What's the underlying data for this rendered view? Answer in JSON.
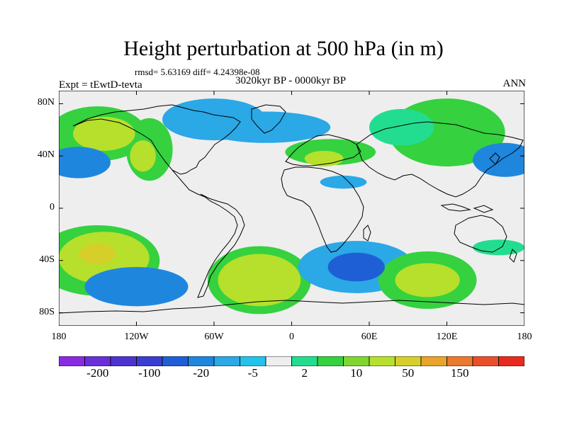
{
  "title": "Height perturbation at 500 hPa (in m)",
  "stats": "rmsd= 5.63169 diff= 4.24398e-08",
  "subtitle": "3020kyr BP - 0000kyr BP",
  "experiment": "Expt = tEwtD-tevta",
  "season": "ANN",
  "lat_ticks": [
    {
      "label": "80N",
      "lat": 80
    },
    {
      "label": "40N",
      "lat": 40
    },
    {
      "label": "0",
      "lat": 0
    },
    {
      "label": "40S",
      "lat": -40
    },
    {
      "label": "80S",
      "lat": -80
    }
  ],
  "lon_ticks": [
    {
      "label": "180",
      "lon": -180
    },
    {
      "label": "120W",
      "lon": -120
    },
    {
      "label": "60W",
      "lon": -60
    },
    {
      "label": "0",
      "lon": 0
    },
    {
      "label": "60E",
      "lon": 60
    },
    {
      "label": "120E",
      "lon": 120
    },
    {
      "label": "180",
      "lon": 180
    }
  ],
  "colorbar": {
    "colors": [
      "#8a2be2",
      "#6a2fd8",
      "#4e34cf",
      "#3a3ed1",
      "#1f5fd6",
      "#1f86dd",
      "#2ba8e6",
      "#22c3ea",
      "#eeeeee",
      "#22dd8f",
      "#35d13f",
      "#7fd62f",
      "#b6e02b",
      "#d6cf2a",
      "#e9a42c",
      "#ea7a2d",
      "#ea4f2b",
      "#e82a1f"
    ],
    "labels": [
      {
        "text": "-200",
        "after_box": 1
      },
      {
        "text": "-100",
        "after_box": 3
      },
      {
        "text": "-20",
        "after_box": 5
      },
      {
        "text": "-5",
        "after_box": 7
      },
      {
        "text": "2",
        "after_box": 9
      },
      {
        "text": "10",
        "after_box": 11
      },
      {
        "text": "50",
        "after_box": 13
      },
      {
        "text": "150",
        "after_box": 15
      }
    ]
  },
  "field_blobs": [
    {
      "lon": -145,
      "lat": 57,
      "rx": 24,
      "ry": 13,
      "color": "#b6e02b"
    },
    {
      "lon": -150,
      "lat": 57,
      "rx": 38,
      "ry": 21,
      "color": "#35d13f"
    },
    {
      "lon": -165,
      "lat": 35,
      "rx": 25,
      "ry": 12,
      "color": "#1f86dd"
    },
    {
      "lon": -115,
      "lat": 40,
      "rx": 10,
      "ry": 12,
      "color": "#b6e02b"
    },
    {
      "lon": -110,
      "lat": 45,
      "rx": 18,
      "ry": 24,
      "color": "#35d13f"
    },
    {
      "lon": -60,
      "lat": 68,
      "rx": 40,
      "ry": 16,
      "color": "#2ba8e6"
    },
    {
      "lon": -20,
      "lat": 62,
      "rx": 50,
      "ry": 12,
      "color": "#2ba8e6"
    },
    {
      "lon": 30,
      "lat": 43,
      "rx": 35,
      "ry": 10,
      "color": "#35d13f"
    },
    {
      "lon": 25,
      "lat": 38,
      "rx": 15,
      "ry": 6,
      "color": "#b6e02b"
    },
    {
      "lon": 120,
      "lat": 58,
      "rx": 45,
      "ry": 26,
      "color": "#35d13f"
    },
    {
      "lon": 85,
      "lat": 62,
      "rx": 25,
      "ry": 14,
      "color": "#22dd8f"
    },
    {
      "lon": 165,
      "lat": 37,
      "rx": 25,
      "ry": 13,
      "color": "#1f86dd"
    },
    {
      "lon": 40,
      "lat": 20,
      "rx": 18,
      "ry": 5,
      "color": "#2ba8e6"
    },
    {
      "lon": -145,
      "lat": -38,
      "rx": 35,
      "ry": 20,
      "color": "#b6e02b"
    },
    {
      "lon": -150,
      "lat": -35,
      "rx": 14,
      "ry": 8,
      "color": "#d6cf2a"
    },
    {
      "lon": -150,
      "lat": -40,
      "rx": 48,
      "ry": 27,
      "color": "#35d13f"
    },
    {
      "lon": -120,
      "lat": -60,
      "rx": 40,
      "ry": 15,
      "color": "#1f86dd"
    },
    {
      "lon": -25,
      "lat": -55,
      "rx": 32,
      "ry": 20,
      "color": "#b6e02b"
    },
    {
      "lon": -25,
      "lat": -55,
      "rx": 40,
      "ry": 26,
      "color": "#35d13f"
    },
    {
      "lon": 50,
      "lat": -45,
      "rx": 45,
      "ry": 20,
      "color": "#2ba8e6"
    },
    {
      "lon": 50,
      "lat": -45,
      "rx": 22,
      "ry": 11,
      "color": "#1f5fd6"
    },
    {
      "lon": 105,
      "lat": -55,
      "rx": 25,
      "ry": 13,
      "color": "#b6e02b"
    },
    {
      "lon": 105,
      "lat": -55,
      "rx": 38,
      "ry": 22,
      "color": "#35d13f"
    },
    {
      "lon": 160,
      "lat": -30,
      "rx": 20,
      "ry": 6,
      "color": "#22dd8f"
    }
  ]
}
